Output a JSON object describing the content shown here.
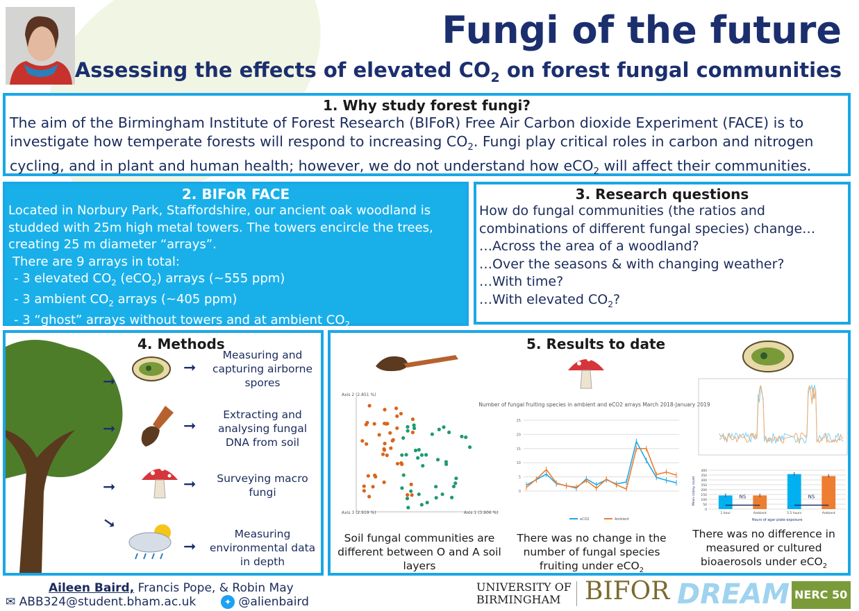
{
  "header": {
    "title": "Fungi of the future",
    "subtitle_pre": "Assessing the effects of elevated CO",
    "subtitle_sub": "2",
    "subtitle_post": " on forest fungal communities"
  },
  "s1": {
    "heading": "1. Why study forest fungi?",
    "t1": "The aim of the Birmingham Institute of Forest Research (BIFoR) Free Air Carbon dioxide Experiment (FACE) is to investigate how temperate forests will respond to increasing CO",
    "t2": ". Fungi play critical roles in carbon and nitrogen cycling, and in plant and human health; however, we do not understand how eCO",
    "t3": " will affect their communities.",
    "sub": "2"
  },
  "s2": {
    "heading": "2. BIFoR FACE",
    "intro": "Located in Norbury Park, Staffordshire, our ancient oak woodland is studded with 25m high metal towers. The towers encircle the trees, creating 25 m diameter “arrays”.",
    "count": "There are 9 arrays in total:",
    "items": [
      {
        "a": " - 3 elevated CO",
        "b": " (eCO",
        "c": ") arrays (~555 ppm)"
      },
      {
        "a": " - 3 ambient CO",
        "c": " arrays (~405 ppm)"
      },
      {
        "a": " - 3 “ghost” arrays without towers and at ambient CO",
        "c": ""
      }
    ]
  },
  "s3": {
    "heading": "3. Research questions",
    "lines": [
      "How do fungal communities (the ratios and combinations of different fungal species) change…",
      "…Across the area of a woodland?",
      "…Over the seasons & with changing weather?",
      "…With time?",
      "…With elevated CO"
    ]
  },
  "s4": {
    "heading": "4. Methods",
    "items": [
      "Measuring and capturing airborne spores",
      "Extracting and analysing fungal DNA from soil",
      "Surveying macro fungi",
      "Measuring environmental data in depth"
    ]
  },
  "s5": {
    "heading": "5. Results to date",
    "captions": [
      "Soil fungal communities are different between O and A soil layers",
      "There was no change in the number of fungal species fruiting under eCO",
      "There was no difference in measured or cultured bioaerosols under eCO"
    ],
    "pcoa": {
      "axis1": "Axis 1 (3.906 %)",
      "axis2": "Axis 2 (2.851 %)",
      "axis3": "Axis 3 (2.919 %)"
    }
  },
  "chart_data": [
    {
      "type": "line",
      "title": "Number of fungal fruiting species in ambient and eCO2 arrays March 2018-January 2019",
      "ylim": [
        0,
        25
      ],
      "yticks": [
        0,
        5,
        10,
        15,
        20,
        25
      ],
      "series": [
        {
          "name": "eCO2",
          "color": "#1fa8e8",
          "values": [
            2.1,
            4,
            6,
            2.6,
            1.9,
            1,
            4.3,
            2.2,
            4,
            2.5,
            3.2,
            17.5,
            10.8,
            4.8,
            3.8,
            2.9
          ]
        },
        {
          "name": "Ambient",
          "color": "#ed7d31",
          "values": [
            1.3,
            4.2,
            7.6,
            2.8,
            1.8,
            1.4,
            3.7,
            1,
            4.2,
            2.2,
            0.7,
            15,
            15,
            5.8,
            6.7,
            5.6
          ]
        }
      ]
    },
    {
      "type": "bar",
      "categories": [
        "1 hour",
        "Ambient",
        "5.5 hours",
        "Ambient"
      ],
      "values": [
        140,
        140,
        360,
        340
      ],
      "colors": [
        "#00b0f0",
        "#ed7d31",
        "#00b0f0",
        "#ed7d31"
      ],
      "ylim": [
        0,
        400
      ],
      "yticks": [
        0,
        50,
        100,
        150,
        200,
        250,
        300,
        350,
        400
      ],
      "xlabel": "Hours of agar plate exposure",
      "ylabel": "Mean colony count",
      "annotations": [
        "NS",
        "NS"
      ]
    }
  ],
  "footer": {
    "lead_author": "Aileen Baird,",
    "coauthors": " Francis Pope, & Robin May",
    "email": "ABB324@student.bham.ac.uk",
    "twitter": "@alienbaird",
    "logos": [
      "UNIVERSITY OF BIRMINGHAM",
      "BIFOR",
      "DREAM",
      "NERC 50"
    ]
  }
}
